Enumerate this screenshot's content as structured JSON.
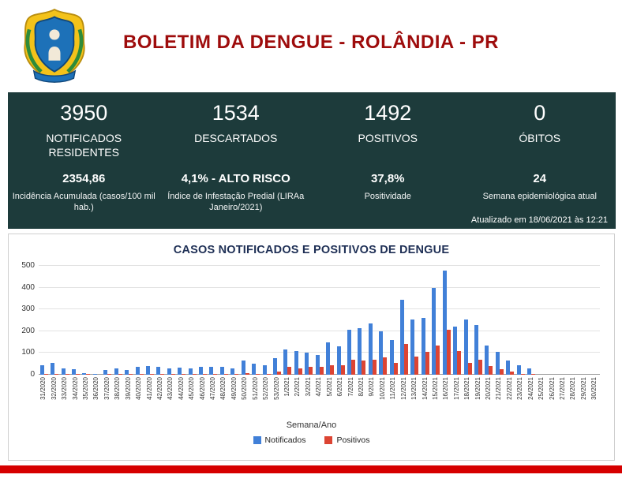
{
  "header": {
    "title": "BOLETIM DA DENGUE - ROLÂNDIA - PR"
  },
  "stats": {
    "row1": [
      {
        "value": "3950",
        "label": "NOTIFICADOS RESIDENTES"
      },
      {
        "value": "1534",
        "label": "DESCARTADOS"
      },
      {
        "value": "1492",
        "label": "POSITIVOS"
      },
      {
        "value": "0",
        "label": "ÓBITOS"
      }
    ],
    "row2": [
      {
        "value": "2354,86",
        "label": "Incidência Acumulada (casos/100 mil hab.)"
      },
      {
        "value": "4,1% - ALTO RISCO",
        "label": "Índice de Infestação Predial (LIRAa Janeiro/2021)"
      },
      {
        "value": "37,8%",
        "label": "Positividade"
      },
      {
        "value": "24",
        "label": "Semana epidemiológica atual"
      }
    ],
    "updated": "Atualizado em 18/06/2021 às 12:21"
  },
  "colors": {
    "band_background": "#1d3b3b",
    "title_red": "#9e0c0c",
    "chart_title_navy": "#1e2f55",
    "notificados_blue": "#4180d8",
    "positivos_red": "#dc4433",
    "bottom_bar_red": "#d60000"
  },
  "chart_data": {
    "type": "bar",
    "title": "CASOS NOTIFICADOS E POSITIVOS DE DENGUE",
    "xlabel": "Semana/Ano",
    "ylabel": "",
    "ylim": [
      0,
      500
    ],
    "yticks": [
      0,
      100,
      200,
      300,
      400,
      500
    ],
    "grid": true,
    "legend_position": "bottom",
    "categories": [
      "31/2020",
      "32/2020",
      "33/2020",
      "34/2020",
      "35/2020",
      "36/2020",
      "37/2020",
      "38/2020",
      "39/2020",
      "40/2020",
      "41/2020",
      "42/2020",
      "43/2020",
      "44/2020",
      "45/2020",
      "46/2020",
      "47/2020",
      "48/2020",
      "49/2020",
      "50/2020",
      "51/2020",
      "52/2020",
      "53/2020",
      "1/2021",
      "2/2021",
      "3/2021",
      "4/2021",
      "5/2021",
      "6/2021",
      "7/2021",
      "8/2021",
      "9/2021",
      "10/2021",
      "11/2021",
      "12/2021",
      "13/2021",
      "14/2021",
      "15/2021",
      "16/2021",
      "17/2021",
      "18/2021",
      "19/2021",
      "20/2021",
      "21/2021",
      "22/2021",
      "23/2021",
      "24/2021",
      "25/2021",
      "26/2021",
      "27/2021",
      "28/2021",
      "29/2021",
      "30/2021"
    ],
    "series": [
      {
        "name": "Notificados",
        "color": "#4180d8",
        "values": [
          45,
          55,
          30,
          25,
          8,
          5,
          20,
          30,
          20,
          35,
          40,
          35,
          30,
          33,
          30,
          35,
          38,
          35,
          28,
          65,
          50,
          42,
          75,
          115,
          110,
          100,
          90,
          150,
          130,
          205,
          215,
          235,
          200,
          160,
          345,
          255,
          260,
          400,
          478,
          220,
          255,
          230,
          135,
          105,
          65,
          45,
          30,
          0,
          0,
          0,
          0,
          0,
          0
        ]
      },
      {
        "name": "Positivos",
        "color": "#dc4433",
        "values": [
          5,
          5,
          3,
          3,
          2,
          0,
          2,
          3,
          2,
          3,
          5,
          3,
          3,
          5,
          3,
          5,
          5,
          5,
          3,
          8,
          5,
          5,
          15,
          35,
          30,
          35,
          35,
          45,
          45,
          70,
          65,
          70,
          80,
          55,
          140,
          85,
          105,
          135,
          205,
          110,
          55,
          70,
          40,
          25,
          15,
          5,
          3,
          0,
          0,
          0,
          0,
          0,
          0
        ]
      }
    ]
  }
}
